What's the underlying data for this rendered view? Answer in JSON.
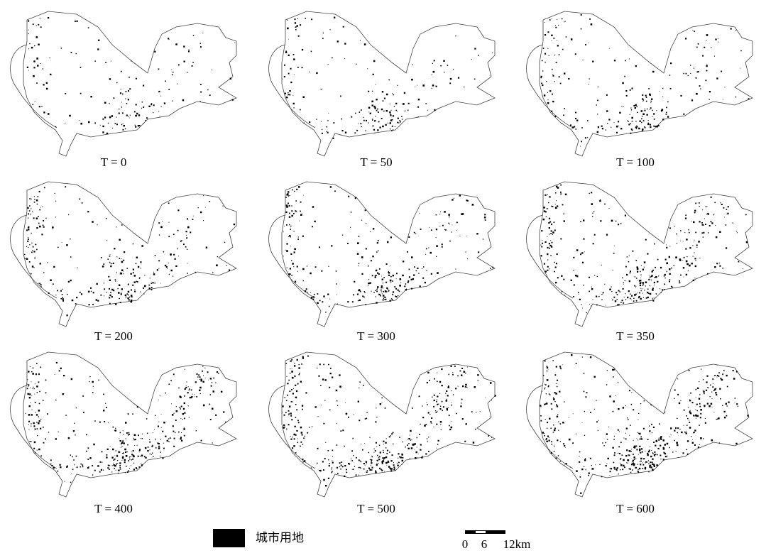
{
  "panels": [
    {
      "label": "T = 0"
    },
    {
      "label": "T = 50"
    },
    {
      "label": "T = 100"
    },
    {
      "label": "T = 200"
    },
    {
      "label": "T = 300"
    },
    {
      "label": "T = 350"
    },
    {
      "label": "T = 400"
    },
    {
      "label": "T = 500"
    },
    {
      "label": "T = 600"
    }
  ],
  "legend": {
    "label": "城市用地"
  },
  "scale_bar": {
    "labels": [
      "0",
      "6",
      "12km"
    ]
  }
}
